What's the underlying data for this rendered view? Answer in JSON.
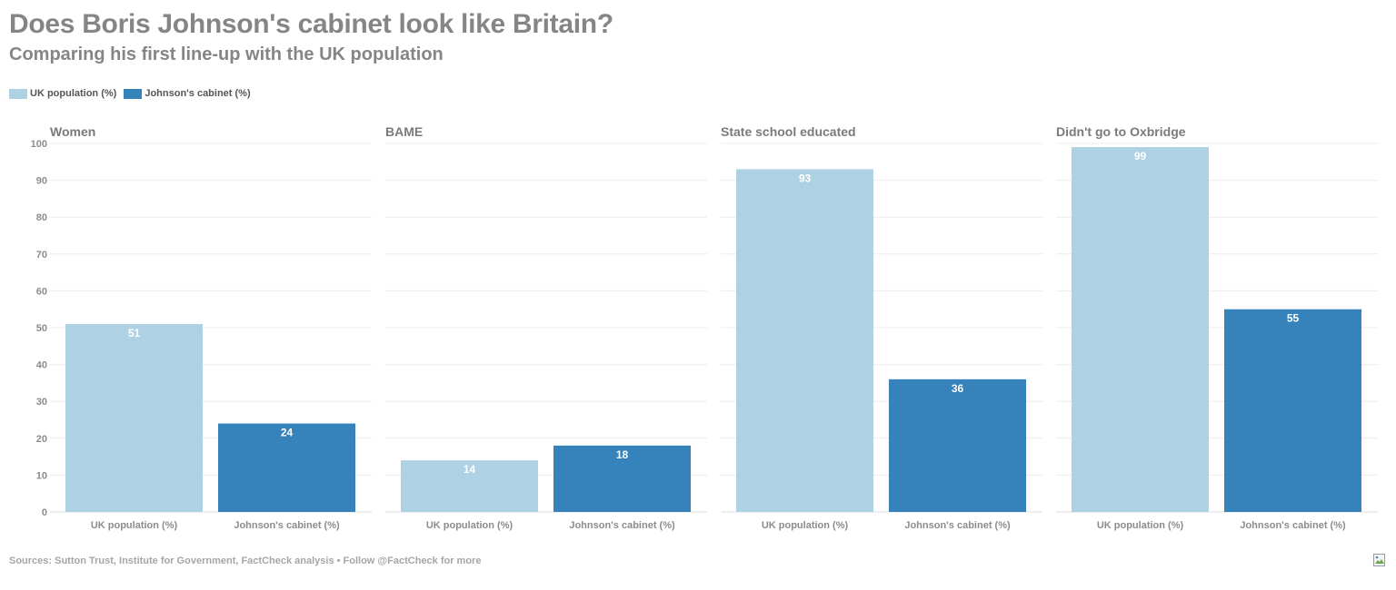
{
  "title": "Does Boris Johnson's cabinet look like Britain?",
  "subtitle": "Comparing his first line-up with the UK population",
  "footer": "Sources: Sutton Trust, Institute for Government, FactCheck analysis • Follow @FactCheck for more",
  "legend": [
    {
      "label": "UK population (%)",
      "color": "#aed1e3"
    },
    {
      "label": "Johnson's cabinet (%)",
      "color": "#3583ba"
    }
  ],
  "chart_data": {
    "type": "bar",
    "ylim": [
      0,
      100
    ],
    "yticks": [
      "0",
      "10",
      "20",
      "30",
      "40",
      "50",
      "60",
      "70",
      "80",
      "90",
      "100"
    ],
    "grid": true,
    "legend_position": "top-left",
    "categories": [
      "UK population (%)",
      "Johnson's cabinet (%)"
    ],
    "colors": [
      "#aed1e3",
      "#3583ba"
    ],
    "panels": [
      {
        "title": "Women",
        "values": [
          51,
          24
        ]
      },
      {
        "title": "BAME",
        "values": [
          14,
          18
        ]
      },
      {
        "title": "State school educated",
        "values": [
          93,
          36
        ]
      },
      {
        "title": "Didn't go to Oxbridge",
        "values": [
          99,
          55
        ]
      }
    ]
  }
}
